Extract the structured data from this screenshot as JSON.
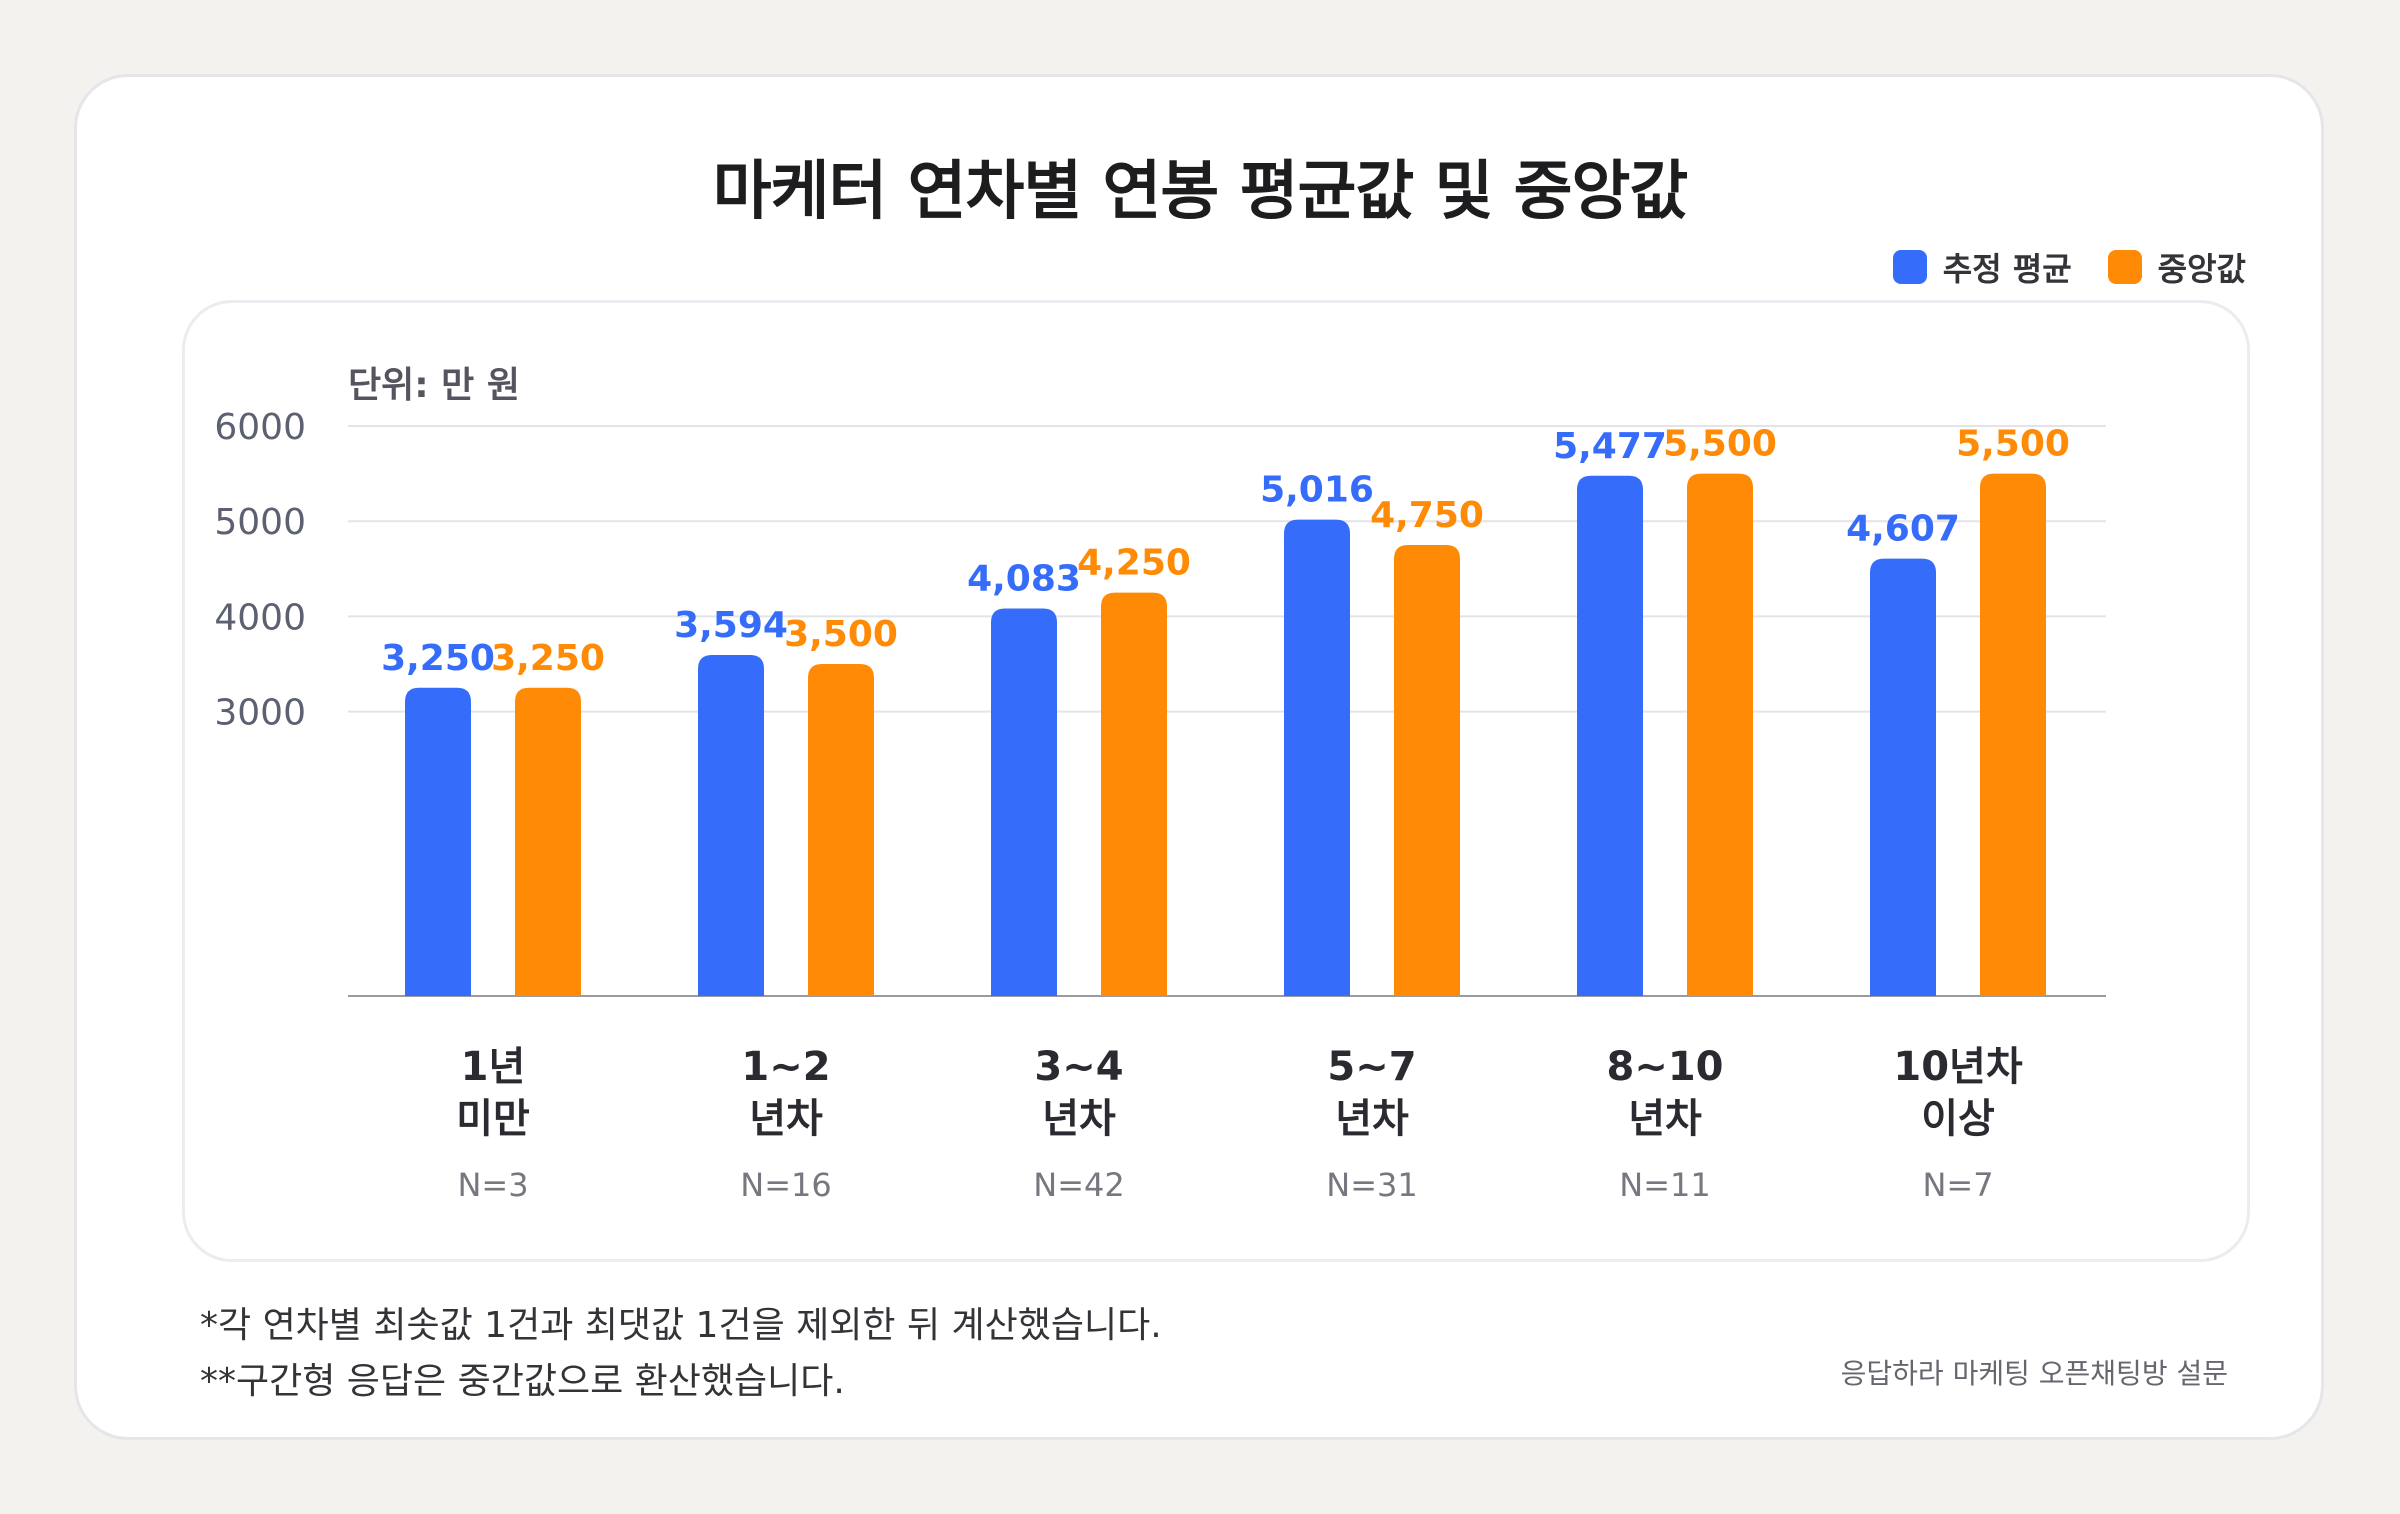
{
  "title": "마케터 연차별 연봉 평균값 및 중앙값",
  "legend": {
    "mean_label": "추정 평균",
    "median_label": "중앙값"
  },
  "unit_label": "단위: 만 원",
  "colors": {
    "mean": "#366cfa",
    "median": "#ff8a05",
    "axis_text": "#5c6070",
    "grid": "#e4e4e8"
  },
  "chart_data": {
    "type": "bar",
    "categories": [
      {
        "line1": "1년",
        "line2": "미만",
        "n": "N=3"
      },
      {
        "line1": "1~2",
        "line2": "년차",
        "n": "N=16"
      },
      {
        "line1": "3~4",
        "line2": "년차",
        "n": "N=42"
      },
      {
        "line1": "5~7",
        "line2": "년차",
        "n": "N=31"
      },
      {
        "line1": "8~10",
        "line2": "년차",
        "n": "N=11"
      },
      {
        "line1": "10년차",
        "line2": "이상",
        "n": "N=7"
      }
    ],
    "series": [
      {
        "name": "추정 평균",
        "values": [
          3250,
          3594,
          4083,
          5016,
          5477,
          4607
        ],
        "labels": [
          "3,250",
          "3,594",
          "4,083",
          "5,016",
          "5,477",
          "4,607"
        ]
      },
      {
        "name": "중앙값",
        "values": [
          3250,
          3500,
          4250,
          4750,
          5500,
          5500
        ],
        "labels": [
          "3,250",
          "3,500",
          "4,250",
          "4,750",
          "5,500",
          "5,500"
        ]
      }
    ],
    "yticks": [
      "6000",
      "5000",
      "4000",
      "3000"
    ],
    "ytick_values": [
      6000,
      5000,
      4000,
      3000
    ],
    "ylim": [
      0,
      6000
    ],
    "grid": true,
    "legend_position": "top-right"
  },
  "footnotes": [
    "*각 연차별 최솟값 1건과 최댓값 1건을 제외한 뒤 계산했습니다.",
    "**구간형 응답은 중간값으로 환산했습니다."
  ],
  "source": "응답하라 마케팅 오픈채팅방 설문"
}
